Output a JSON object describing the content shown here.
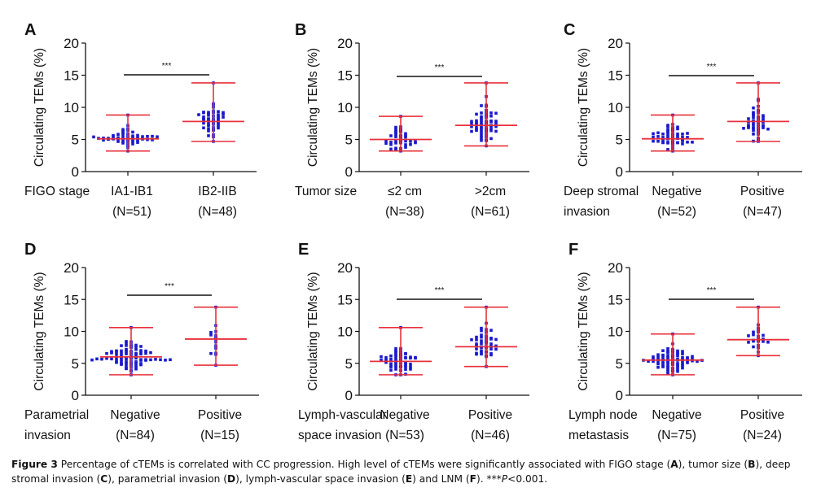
{
  "chart_data": [
    {
      "type": "scatter",
      "panel_label": "A",
      "ylabel": "Circulating TEMs  (%)",
      "ylim": [
        0,
        20
      ],
      "yticks": [
        0,
        5,
        10,
        15,
        20
      ],
      "category_title": [
        "FIGO stage"
      ],
      "categories": [
        {
          "name": "IA1-IB1",
          "n_label": "(N=51)",
          "n": 51,
          "median": 5.1,
          "min": 3.2,
          "max": 8.8
        },
        {
          "name": "IB2-IIB",
          "n_label": "(N=48)",
          "n": 48,
          "median": 7.8,
          "min": 4.7,
          "max": 13.8
        }
      ],
      "significance": "***"
    },
    {
      "type": "scatter",
      "panel_label": "B",
      "ylabel": "Circulating TEMs  (%)",
      "ylim": [
        0,
        20
      ],
      "yticks": [
        0,
        5,
        10,
        15,
        20
      ],
      "category_title": [
        "Tumor size"
      ],
      "categories": [
        {
          "name": "≤2 cm",
          "n_label": "(N=38)",
          "n": 38,
          "median": 5.0,
          "min": 3.2,
          "max": 8.6
        },
        {
          "name": ">2cm",
          "n_label": "(N=61)",
          "n": 61,
          "median": 7.2,
          "min": 4.0,
          "max": 13.8
        }
      ],
      "significance": "***"
    },
    {
      "type": "scatter",
      "panel_label": "C",
      "ylabel": "Circulating TEMs  (%)",
      "ylim": [
        0,
        20
      ],
      "yticks": [
        0,
        5,
        10,
        15,
        20
      ],
      "category_title": [
        "Deep stromal",
        "invasion"
      ],
      "categories": [
        {
          "name": "Negative",
          "n_label": "(N=52)",
          "n": 52,
          "median": 5.1,
          "min": 3.2,
          "max": 8.8
        },
        {
          "name": "Positive",
          "n_label": "(N=47)",
          "n": 47,
          "median": 7.8,
          "min": 4.7,
          "max": 13.8
        }
      ],
      "significance": "***"
    },
    {
      "type": "scatter",
      "panel_label": "D",
      "ylabel": "Circulating TEMs  (%)",
      "ylim": [
        0,
        20
      ],
      "yticks": [
        0,
        5,
        10,
        15,
        20
      ],
      "category_title": [
        "Parametrial",
        "invasion"
      ],
      "categories": [
        {
          "name": "Negative",
          "n_label": "(N=84)",
          "n": 84,
          "median": 6.0,
          "min": 3.2,
          "max": 10.6
        },
        {
          "name": "Positive",
          "n_label": "(N=15)",
          "n": 15,
          "median": 8.8,
          "min": 4.7,
          "max": 13.8
        }
      ],
      "significance": "***"
    },
    {
      "type": "scatter",
      "panel_label": "E",
      "ylabel": "Circulating TEMs  (%)",
      "ylim": [
        0,
        20
      ],
      "yticks": [
        0,
        5,
        10,
        15,
        20
      ],
      "category_title": [
        "Lymph-vascular",
        "space invasion"
      ],
      "categories": [
        {
          "name": "Negative",
          "n_label": "(N=53)",
          "n": 53,
          "median": 5.3,
          "min": 3.2,
          "max": 10.6
        },
        {
          "name": "Positive",
          "n_label": "(N=46)",
          "n": 46,
          "median": 7.6,
          "min": 4.5,
          "max": 13.8
        }
      ],
      "significance": "***"
    },
    {
      "type": "scatter",
      "panel_label": "F",
      "ylabel": "Circulating TEMs  (%)",
      "ylim": [
        0,
        20
      ],
      "yticks": [
        0,
        5,
        10,
        15,
        20
      ],
      "category_title": [
        "Lymph node",
        "metastasis"
      ],
      "categories": [
        {
          "name": "Negative",
          "n_label": "(N=75)",
          "n": 75,
          "median": 5.5,
          "min": 3.2,
          "max": 9.6
        },
        {
          "name": "Positive",
          "n_label": "(N=24)",
          "n": 24,
          "median": 8.7,
          "min": 6.2,
          "max": 13.8
        }
      ],
      "significance": "***"
    }
  ],
  "colors": {
    "points": "#1a1acc",
    "summary_bars": "#e8303a",
    "axes": "#111111"
  },
  "caption": {
    "label": "Figure 3",
    "text_parts": [
      {
        "t": " Percentage of cTEMs is correlated with CC progression. High level of cTEMs were significantly associated with FIGO stage (",
        "b": false
      },
      {
        "t": "A",
        "b": true
      },
      {
        "t": "), tumor size (",
        "b": false
      },
      {
        "t": "B",
        "b": true
      },
      {
        "t": "), deep stromal invasion (",
        "b": false
      },
      {
        "t": "C",
        "b": true
      },
      {
        "t": "), parametrial invasion (",
        "b": false
      },
      {
        "t": "D",
        "b": true
      },
      {
        "t": "), lymph-vascular space invasion (",
        "b": false
      },
      {
        "t": "E",
        "b": true
      },
      {
        "t": ") and LNM (",
        "b": false
      },
      {
        "t": "F",
        "b": true
      },
      {
        "t": "). ***",
        "b": false
      },
      {
        "t": "P",
        "b": false,
        "i": true
      },
      {
        "t": "<0.001.",
        "b": false
      }
    ]
  }
}
